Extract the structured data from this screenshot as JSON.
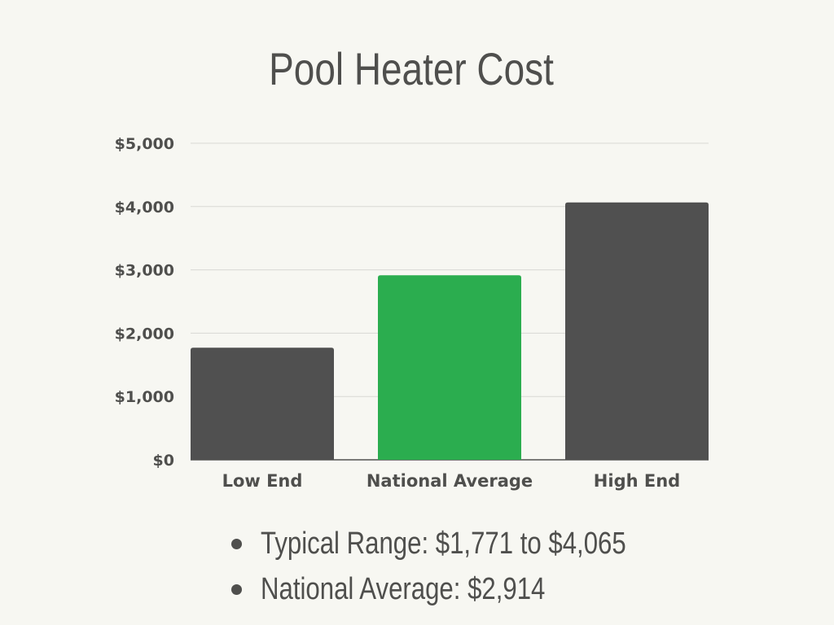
{
  "chart_data": {
    "type": "bar",
    "title": "Pool Heater Cost",
    "categories": [
      "Low End",
      "National Average",
      "High End"
    ],
    "values": [
      1771,
      2914,
      4065
    ],
    "ylim": [
      0,
      5000
    ],
    "yticks": [
      0,
      1000,
      2000,
      3000,
      4000,
      5000
    ],
    "ytick_labels": [
      "$0",
      "$1,000",
      "$2,000",
      "$3,000",
      "$4,000",
      "$5,000"
    ],
    "xlabel": "",
    "ylabel": "",
    "grid": true,
    "colors": [
      "#505050",
      "#2bad4f",
      "#505050"
    ]
  },
  "notes": [
    "Typical Range: $1,771 to $4,065",
    "National Average: $2,914"
  ],
  "colors": {
    "background": "#f7f7f2",
    "text": "#4f4f4d",
    "gridline": "#d8d8d4"
  }
}
